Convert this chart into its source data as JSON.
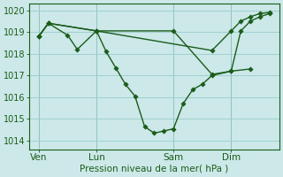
{
  "xlabel": "Pression niveau de la mer( hPa )",
  "ylim": [
    1013.6,
    1020.3
  ],
  "bg_color": "#cce8e8",
  "line_color": "#1a5c1a",
  "grid_color": "#99cccc",
  "xtick_labels": [
    "Ven",
    "Lun",
    "Sam",
    "Dim"
  ],
  "xtick_positions": [
    0,
    3,
    7,
    10
  ],
  "xlim": [
    -0.5,
    12.5
  ],
  "ytick_positions": [
    1014,
    1015,
    1016,
    1017,
    1018,
    1019,
    1020
  ],
  "font_size": 7.5,
  "marker_size": 2.8,
  "series": [
    {
      "x": [
        0,
        0.5,
        1.5,
        2.0,
        3.0,
        3.5,
        4.0,
        4.5,
        5.0,
        5.5,
        6.0,
        6.5,
        7.0,
        7.5,
        8.0,
        8.5,
        9.0,
        10.0,
        11.0
      ],
      "y": [
        1018.8,
        1019.4,
        1018.85,
        1018.2,
        1019.05,
        1018.1,
        1017.35,
        1016.6,
        1016.05,
        1014.65,
        1014.35,
        1014.45,
        1014.55,
        1015.7,
        1016.35,
        1016.6,
        1017.0,
        1017.2,
        1017.3
      ]
    },
    {
      "x": [
        0,
        0.5,
        3.0,
        7.0,
        9.0,
        10.0,
        10.5,
        11.0,
        11.5,
        12.0
      ],
      "y": [
        1018.8,
        1019.4,
        1019.05,
        1019.05,
        1017.05,
        1017.2,
        1019.05,
        1019.5,
        1019.7,
        1019.85
      ]
    },
    {
      "x": [
        0,
        0.5,
        3.0,
        9.0,
        10.0,
        10.5,
        11.0,
        11.5,
        12.0
      ],
      "y": [
        1018.8,
        1019.4,
        1019.05,
        1018.15,
        1019.05,
        1019.5,
        1019.7,
        1019.85,
        1019.9
      ]
    }
  ],
  "vlines_x": [
    0,
    3,
    7,
    10
  ]
}
